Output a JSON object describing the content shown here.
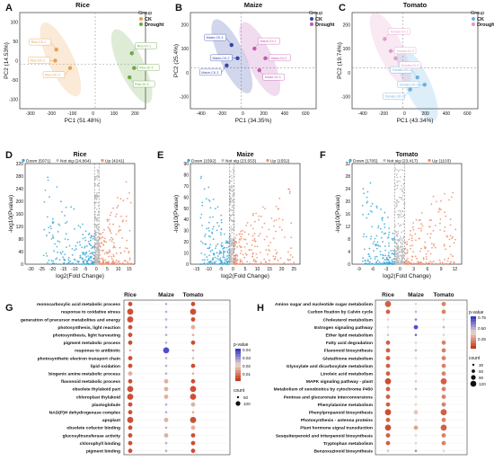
{
  "figure": {
    "colors": {
      "ck": "#8aa14a",
      "drought": "#d49a4a",
      "down": "#3aa9d6",
      "ns": "#bdbdbd",
      "up": "#f08d6b"
    },
    "pca_panels": [
      {
        "letter": "A",
        "title": "Rice",
        "xlabel": "PC1 (51.48%)",
        "ylabel": "PC2 (14.53%)",
        "xticks": [
          "-300",
          "-200",
          "-100",
          "0",
          "100",
          "200"
        ],
        "yticks": [
          "-100",
          "-50",
          "0",
          "50",
          "100"
        ],
        "xlim": [
          -330,
          220
        ],
        "ylim": [
          -120,
          140
        ],
        "legend_title": "Group",
        "legend": [
          "CK",
          "Drought"
        ],
        "colors": {
          "ck": "#e8a04a",
          "drought": "#6aa843"
        },
        "ck_labels": [
          "Rice-CK-1",
          "Rice-CK-2",
          "Rice-CK-3"
        ],
        "dr_labels": [
          "Rice-Dr-1",
          "Rice-Dr-2",
          "Rice-Dr-3"
        ],
        "ck_points": [
          [
            -170,
            40
          ],
          [
            -175,
            10
          ],
          [
            -110,
            -10
          ]
        ],
        "dr_points": [
          [
            160,
            30
          ],
          [
            170,
            -10
          ],
          [
            150,
            -35
          ]
        ]
      },
      {
        "letter": "B",
        "title": "Maize",
        "xlabel": "PC1 (34.35%)",
        "ylabel": "PC2 (25.4%)",
        "xticks": [
          "-400",
          "-200",
          "0",
          "200",
          "400",
          "600"
        ],
        "yticks": [
          "-100",
          "0",
          "100",
          "200"
        ],
        "xlim": [
          -420,
          620
        ],
        "ylim": [
          -170,
          230
        ],
        "legend_title": "Group",
        "legend": [
          "CK",
          "Drought"
        ],
        "colors": {
          "ck": "#3346a8",
          "drought": "#c05ab0"
        },
        "ck_labels": [
          "Maize-CK-1",
          "Maize-CK-2",
          "Maize-CK-3"
        ],
        "dr_labels": [
          "Maize-Dr-1",
          "Maize-Dr-2",
          "Maize-Dr-3"
        ],
        "ck_points": [
          [
            -80,
            95
          ],
          [
            -30,
            40
          ],
          [
            -120,
            10
          ]
        ],
        "dr_points": [
          [
            110,
            80
          ],
          [
            200,
            40
          ],
          [
            150,
            -10
          ]
        ]
      },
      {
        "letter": "C",
        "title": "Tomato",
        "xlabel": "PC1 (43.34%)",
        "ylabel": "PC2 (19.74%)",
        "xticks": [
          "-400",
          "-200",
          "0",
          "200",
          "400",
          "600"
        ],
        "yticks": [
          "-100",
          "0",
          "100",
          "200"
        ],
        "xlim": [
          -420,
          620
        ],
        "ylim": [
          -170,
          230
        ],
        "legend_title": "Group",
        "legend": [
          "CK",
          "Drought"
        ],
        "colors": {
          "ck": "#6ab0e0",
          "drought": "#e09cc8"
        },
        "ck_labels": [
          "Tomato-CK-1",
          "Tomato-CK-2",
          "Tomato-CK-3"
        ],
        "dr_labels": [
          "Tomato-Dr-1",
          "Tomato-Dr-2",
          "Tomato-Dr-3"
        ],
        "ck_points": [
          [
            120,
            -40
          ],
          [
            180,
            -70
          ],
          [
            60,
            -90
          ]
        ],
        "dr_points": [
          [
            -150,
            120
          ],
          [
            -100,
            70
          ],
          [
            -60,
            40
          ]
        ]
      }
    ],
    "volcano_panels": [
      {
        "letter": "D",
        "title": "Rice",
        "legend": [
          "Down (5071)",
          "Not sig (24,864)",
          "Up (4241)"
        ],
        "xlabel": "log2(Fold Change)",
        "ylabel": "-log10(Pvalue)",
        "xticks": [
          "-30",
          "-25",
          "-20",
          "-15",
          "-10",
          "-5",
          "0",
          "5",
          "10",
          "15"
        ],
        "yticks": [
          "0",
          "40",
          "80",
          "120",
          "160",
          "200",
          "240",
          "280",
          "320"
        ],
        "xlim": [
          -32,
          17
        ],
        "ylim": [
          0,
          335
        ]
      },
      {
        "letter": "E",
        "title": "Maize",
        "legend": [
          "Down (1592)",
          "Not sig (23,553)",
          "Up (1552)"
        ],
        "xlabel": "log2(Fold Change)",
        "ylabel": "-log10(Pvalue)",
        "xticks": [
          "-15",
          "-10",
          "-5",
          "0",
          "5",
          "10",
          "15",
          "20",
          "25"
        ],
        "yticks": [
          "0",
          "10",
          "20",
          "30",
          "40",
          "50",
          "60",
          "70",
          "80",
          "90"
        ],
        "xlim": [
          -17,
          28
        ],
        "ylim": [
          0,
          95
        ]
      },
      {
        "letter": "F",
        "title": "Tomato",
        "legend": [
          "Down (1705)",
          "Not sig (23,417)",
          "Up (1103)"
        ],
        "xlabel": "log2(Fold Change)",
        "ylabel": "-log10(Pvalue)",
        "xticks": [
          "-9",
          "-6",
          "-3",
          "0",
          "3",
          "6",
          "9",
          "12"
        ],
        "yticks": [
          "0",
          "4",
          "8",
          "12",
          "16",
          "20",
          "24",
          "28",
          "32"
        ],
        "xlim": [
          -10,
          13
        ],
        "ylim": [
          0,
          33
        ]
      }
    ],
    "dot_panels": [
      {
        "letter": "G",
        "columns": [
          "Rice",
          "Maize",
          "Tomato"
        ],
        "legend_title": "p-value",
        "legend_ticks": [
          "0.04",
          "0.03",
          "0.02",
          "0.01"
        ],
        "count_title": "count",
        "count_ticks": [
          "50",
          "100"
        ],
        "rows": [
          "monocarboxylic acid metabolic process",
          "response to oxidative stress",
          "generation of precursor metabolites and energy",
          "photosynthesis, light reaction",
          "photosynthesis, light harvesting",
          "pigment metabolic process",
          "response to antibiotic",
          "photosynthetic electron transport chain",
          "lipid oxidation",
          "biogenic amine metabolic process",
          "flavonoid metabolic process",
          "obsolete thylakoid part",
          "chloroplast thylakoid",
          "plastoglobule",
          "NAD(P)H dehydrogenase complex",
          "apoplast",
          "obsolete cofactor binding",
          "glucosyltransferase activity",
          "chlorophyll binding",
          "pigment binding"
        ],
        "sizes": [
          [
            2,
            1,
            2
          ],
          [
            3,
            1,
            3
          ],
          [
            3,
            1,
            2
          ],
          [
            2,
            1,
            2
          ],
          [
            2,
            1,
            1
          ],
          [
            2,
            1,
            2
          ],
          [
            1,
            3,
            1
          ],
          [
            2,
            1,
            1
          ],
          [
            2,
            1,
            2
          ],
          [
            2,
            1,
            1
          ],
          [
            2,
            2,
            2
          ],
          [
            3,
            2,
            3
          ],
          [
            3,
            2,
            3
          ],
          [
            2,
            1,
            2
          ],
          [
            2,
            1,
            1
          ],
          [
            3,
            2,
            3
          ],
          [
            2,
            1,
            2
          ],
          [
            2,
            2,
            2
          ],
          [
            2,
            1,
            2
          ],
          [
            2,
            1,
            2
          ]
        ],
        "pvalues": [
          [
            0.01,
            0.03,
            0.01
          ],
          [
            0.01,
            0.03,
            0.01
          ],
          [
            0.01,
            0.03,
            0.01
          ],
          [
            0.01,
            0.03,
            0.02
          ],
          [
            0.01,
            0.03,
            0.02
          ],
          [
            0.01,
            0.03,
            0.01
          ],
          [
            0.02,
            0.04,
            0.02
          ],
          [
            0.01,
            0.03,
            0.02
          ],
          [
            0.01,
            0.03,
            0.01
          ],
          [
            0.02,
            0.03,
            0.02
          ],
          [
            0.01,
            0.02,
            0.01
          ],
          [
            0.01,
            0.02,
            0.01
          ],
          [
            0.01,
            0.02,
            0.01
          ],
          [
            0.01,
            0.03,
            0.02
          ],
          [
            0.01,
            0.03,
            0.02
          ],
          [
            0.01,
            0.02,
            0.01
          ],
          [
            0.01,
            0.03,
            0.02
          ],
          [
            0.01,
            0.02,
            0.01
          ],
          [
            0.01,
            0.03,
            0.01
          ],
          [
            0.01,
            0.03,
            0.01
          ]
        ]
      },
      {
        "letter": "H",
        "columns": [
          "Rice",
          "Maize",
          "Tomato"
        ],
        "legend_title": "p-value",
        "legend_ticks": [
          "0.75",
          "0.50",
          "0.25"
        ],
        "count_title": "count",
        "count_ticks": [
          "30",
          "60",
          "90",
          "120"
        ],
        "rows": [
          "Amino sugar and nucleotide sugar metabolism",
          "Carbon fixation by Calvin cycle",
          "Cholesterol metabolism",
          "Estrogen signaling pathway",
          "Ether lipid metabolism",
          "Fatty acid degradation",
          "Flavonoid biosynthesis",
          "Glutathione metabolism",
          "Glyoxylate and dicarboxylate metabolism",
          "Linoleic acid metabolism",
          "MAPK signaling pathway - plant",
          "Metabolism of xenobiotics by cytochrome P450",
          "Pentose and glucuronate interconversions",
          "Phenylalanine metabolism",
          "Phenylpropanoid biosynthesis",
          "Photosynthesis - antenna proteins",
          "Plant hormone signal transduction",
          "Sesquiterpenoid and triterpenoid biosynthesis",
          "Tryptophan metabolism",
          "Benzoxazinoid biosynthesis"
        ],
        "sizes": [
          [
            3,
            1,
            2
          ],
          [
            2,
            1,
            2
          ],
          [
            1,
            1,
            1
          ],
          [
            1,
            2,
            1
          ],
          [
            1,
            1,
            1
          ],
          [
            2,
            1,
            2
          ],
          [
            2,
            1,
            2
          ],
          [
            2,
            1,
            2
          ],
          [
            2,
            1,
            2
          ],
          [
            2,
            1,
            2
          ],
          [
            3,
            1,
            3
          ],
          [
            2,
            1,
            2
          ],
          [
            2,
            1,
            2
          ],
          [
            2,
            1,
            2
          ],
          [
            3,
            2,
            3
          ],
          [
            2,
            1,
            2
          ],
          [
            3,
            2,
            3
          ],
          [
            2,
            1,
            2
          ],
          [
            2,
            1,
            2
          ],
          [
            1,
            1,
            1
          ]
        ],
        "pvalues": [
          [
            0.1,
            0.5,
            0.2
          ],
          [
            0.1,
            0.6,
            0.2
          ],
          [
            0.5,
            0.75,
            0.5
          ],
          [
            0.5,
            0.9,
            0.6
          ],
          [
            0.4,
            0.8,
            0.5
          ],
          [
            0.1,
            0.5,
            0.2
          ],
          [
            0.1,
            0.6,
            0.2
          ],
          [
            0.1,
            0.5,
            0.2
          ],
          [
            0.1,
            0.5,
            0.2
          ],
          [
            0.1,
            0.5,
            0.2
          ],
          [
            0.05,
            0.4,
            0.1
          ],
          [
            0.1,
            0.6,
            0.2
          ],
          [
            0.1,
            0.5,
            0.2
          ],
          [
            0.1,
            0.5,
            0.2
          ],
          [
            0.05,
            0.4,
            0.1
          ],
          [
            0.1,
            0.5,
            0.2
          ],
          [
            0.05,
            0.3,
            0.1
          ],
          [
            0.1,
            0.5,
            0.2
          ],
          [
            0.1,
            0.5,
            0.2
          ],
          [
            0.4,
            0.7,
            0.5
          ]
        ]
      }
    ]
  },
  "chart_data": [
    {
      "type": "scatter",
      "title": "Rice",
      "xlabel": "PC1 (51.48%)",
      "ylabel": "PC2 (14.53%)",
      "xlim": [
        -330,
        220
      ],
      "ylim": [
        -120,
        140
      ],
      "series": [
        {
          "name": "CK",
          "x": [
            -170,
            -175,
            -110
          ],
          "y": [
            40,
            10,
            -10
          ]
        },
        {
          "name": "Drought",
          "x": [
            160,
            170,
            150
          ],
          "y": [
            30,
            -10,
            -35
          ]
        }
      ]
    },
    {
      "type": "scatter",
      "title": "Maize",
      "xlabel": "PC1 (34.35%)",
      "ylabel": "PC2 (25.4%)",
      "xlim": [
        -420,
        620
      ],
      "ylim": [
        -170,
        230
      ],
      "series": [
        {
          "name": "CK",
          "x": [
            -80,
            -30,
            -120
          ],
          "y": [
            95,
            40,
            10
          ]
        },
        {
          "name": "Drought",
          "x": [
            110,
            200,
            150
          ],
          "y": [
            80,
            40,
            -10
          ]
        }
      ]
    },
    {
      "type": "scatter",
      "title": "Tomato",
      "xlabel": "PC1 (43.34%)",
      "ylabel": "PC2 (19.74%)",
      "xlim": [
        -420,
        620
      ],
      "ylim": [
        -170,
        230
      ],
      "series": [
        {
          "name": "CK",
          "x": [
            120,
            180,
            60
          ],
          "y": [
            -40,
            -70,
            -90
          ]
        },
        {
          "name": "Drought",
          "x": [
            -150,
            -100,
            -60
          ],
          "y": [
            120,
            70,
            40
          ]
        }
      ]
    },
    {
      "type": "scatter",
      "title": "Rice",
      "xlabel": "log2(Fold Change)",
      "ylabel": "-log10(Pvalue)",
      "xlim": [
        -32,
        17
      ],
      "ylim": [
        0,
        335
      ],
      "series": [
        {
          "name": "Down (5071)",
          "count": 5071
        },
        {
          "name": "Not sig (24,864)",
          "count": 24864
        },
        {
          "name": "Up (4241)",
          "count": 4241
        }
      ]
    },
    {
      "type": "scatter",
      "title": "Maize",
      "xlabel": "log2(Fold Change)",
      "ylabel": "-log10(Pvalue)",
      "xlim": [
        -17,
        28
      ],
      "ylim": [
        0,
        95
      ],
      "series": [
        {
          "name": "Down (1592)",
          "count": 1592
        },
        {
          "name": "Not sig (23,553)",
          "count": 23553
        },
        {
          "name": "Up (1552)",
          "count": 1552
        }
      ]
    },
    {
      "type": "scatter",
      "title": "Tomato",
      "xlabel": "log2(Fold Change)",
      "ylabel": "-log10(Pvalue)",
      "xlim": [
        -10,
        13
      ],
      "ylim": [
        0,
        33
      ],
      "series": [
        {
          "name": "Down (1705)",
          "count": 1705
        },
        {
          "name": "Not sig (23,417)",
          "count": 23417
        },
        {
          "name": "Up (1103)",
          "count": 1103
        }
      ]
    }
  ]
}
